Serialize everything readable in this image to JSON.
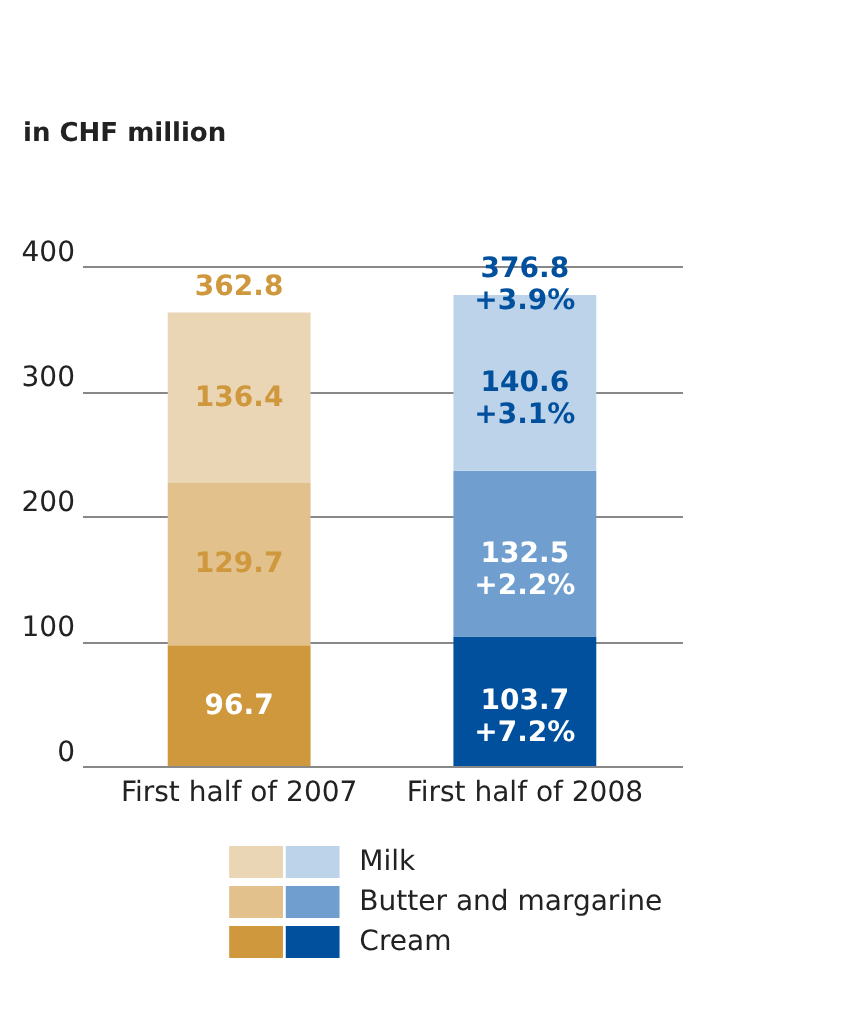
{
  "chart_data": {
    "type": "bar",
    "stacked": true,
    "ylabel": "in CHF million",
    "categories": [
      "First half of 2007",
      "First half of 2008"
    ],
    "series": [
      {
        "name": "Cream",
        "colors": [
          "#cf983d",
          "#00509e"
        ],
        "values": [
          96.7,
          103.7
        ],
        "value_labels": [
          "96.7",
          "103.7\n+7.2%"
        ]
      },
      {
        "name": "Butter and margarine",
        "colors": [
          "#e2c18d",
          "#709fcf"
        ],
        "values": [
          129.7,
          132.5
        ],
        "value_labels": [
          "129.7",
          "132.5\n+2.2%"
        ]
      },
      {
        "name": "Milk",
        "colors": [
          "#ead5b4",
          "#bcd3ea"
        ],
        "values": [
          136.4,
          140.6
        ],
        "value_labels": [
          "136.4",
          "140.6\n+3.1%"
        ]
      }
    ],
    "totals": [
      "362.8",
      "376.8\n+3.9%"
    ],
    "ylim": [
      0,
      400
    ],
    "yticks": [
      0,
      100,
      200,
      300,
      400
    ],
    "grid": "y",
    "legend": "bottom"
  }
}
